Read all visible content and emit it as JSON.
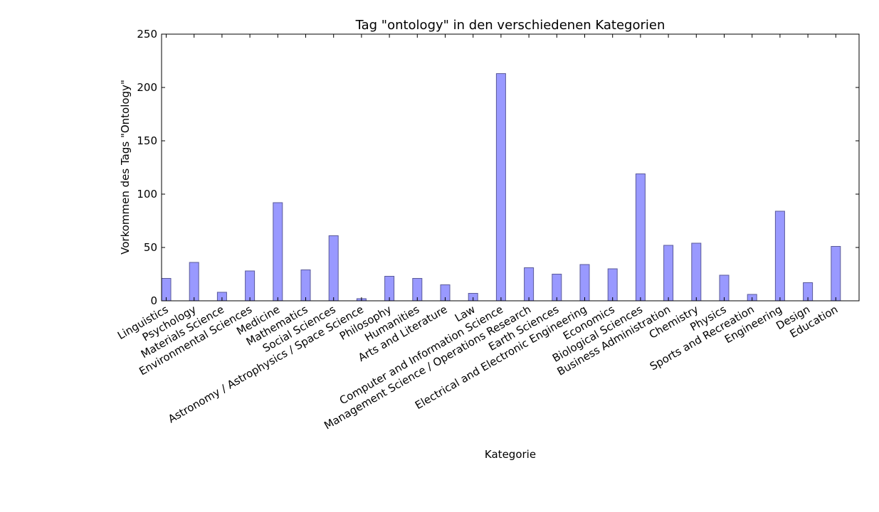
{
  "chart_data": {
    "type": "bar",
    "title": "Tag \"ontology\" in den verschiedenen Kategorien",
    "xlabel": "Kategorie",
    "ylabel": "Vorkommen des Tags \"Ontology\"",
    "ylim": [
      0,
      250
    ],
    "yticks": [
      "0",
      "50",
      "100",
      "150",
      "200",
      "250"
    ],
    "grid": false,
    "bar_color": "#9999ff",
    "bar_edge_color": "#5a5a9a",
    "categories": [
      "Linguistics",
      "Psychology",
      "Materials Science",
      "Environmental Sciences",
      "Medicine",
      "Mathematics",
      "Social Sciences",
      "Astronomy / Astrophysics / Space Science",
      "Philosophy",
      "Humanities",
      "Arts and Literature",
      "Law",
      "Computer and Information Science",
      "Management Science / Operations Research",
      "Earth Sciences",
      "Electrical and Electronic Engineering",
      "Economics",
      "Biological Sciences",
      "Business Administration",
      "Chemistry",
      "Physics",
      "Sports and Recreation",
      "Engineering",
      "Design",
      "Education"
    ],
    "values": [
      21,
      36,
      8,
      28,
      92,
      29,
      61,
      2,
      23,
      21,
      15,
      7,
      213,
      31,
      25,
      34,
      30,
      119,
      52,
      54,
      24,
      6,
      84,
      17,
      51
    ]
  }
}
